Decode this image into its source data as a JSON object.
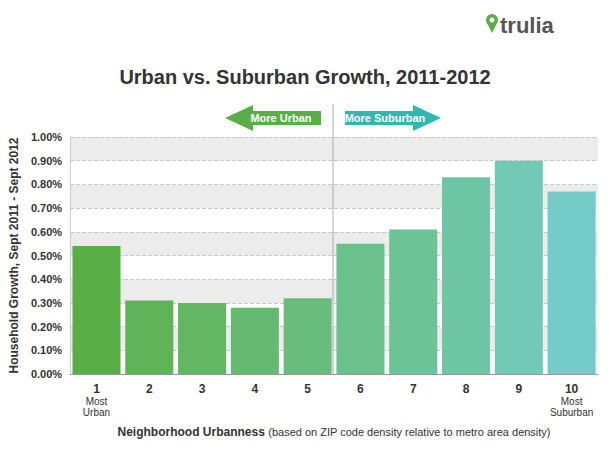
{
  "chart_data": {
    "type": "bar",
    "title": "Urban vs. Suburban Growth, 2011-2012",
    "ylabel": "Household Growth, Sept 2011 - Sept 2012",
    "xlabel": "Neighborhood Urbanness (based on ZIP code density relative to metro area density)",
    "annotations": [
      "More Urban",
      "More Suburban",
      "trulia"
    ],
    "categories": [
      "1\nMost\nUrban",
      "2",
      "3",
      "4",
      "5",
      "6",
      "7",
      "8",
      "9",
      "10\nMost\nSuburban"
    ],
    "values": [
      0.54,
      0.31,
      0.3,
      0.28,
      0.32,
      0.55,
      0.61,
      0.83,
      0.9,
      0.77
    ],
    "colors": [
      "#5aae48",
      "#60b356",
      "#63b663",
      "#66b970",
      "#68bd7d",
      "#6bc08b",
      "#6dc398",
      "#6fc6a7",
      "#71c9b6",
      "#74ccc8"
    ],
    "ylim": [
      0,
      1
    ],
    "yticks": [
      {
        "value": 0,
        "label": "0.00%"
      },
      {
        "value": 0.1,
        "label": "0.10%"
      },
      {
        "value": 0.2,
        "label": "0.20%"
      },
      {
        "value": 0.3,
        "label": "0.30%"
      },
      {
        "value": 0.4,
        "label": "0.40%"
      },
      {
        "value": 0.5,
        "label": "0.50%"
      },
      {
        "value": 0.6,
        "label": "0.60%"
      },
      {
        "value": 0.7,
        "label": "0.70%"
      },
      {
        "value": 0.8,
        "label": "0.80%"
      },
      {
        "value": 0.9,
        "label": "0.90%"
      },
      {
        "value": 1,
        "label": "1.00%"
      }
    ],
    "grid": true
  }
}
